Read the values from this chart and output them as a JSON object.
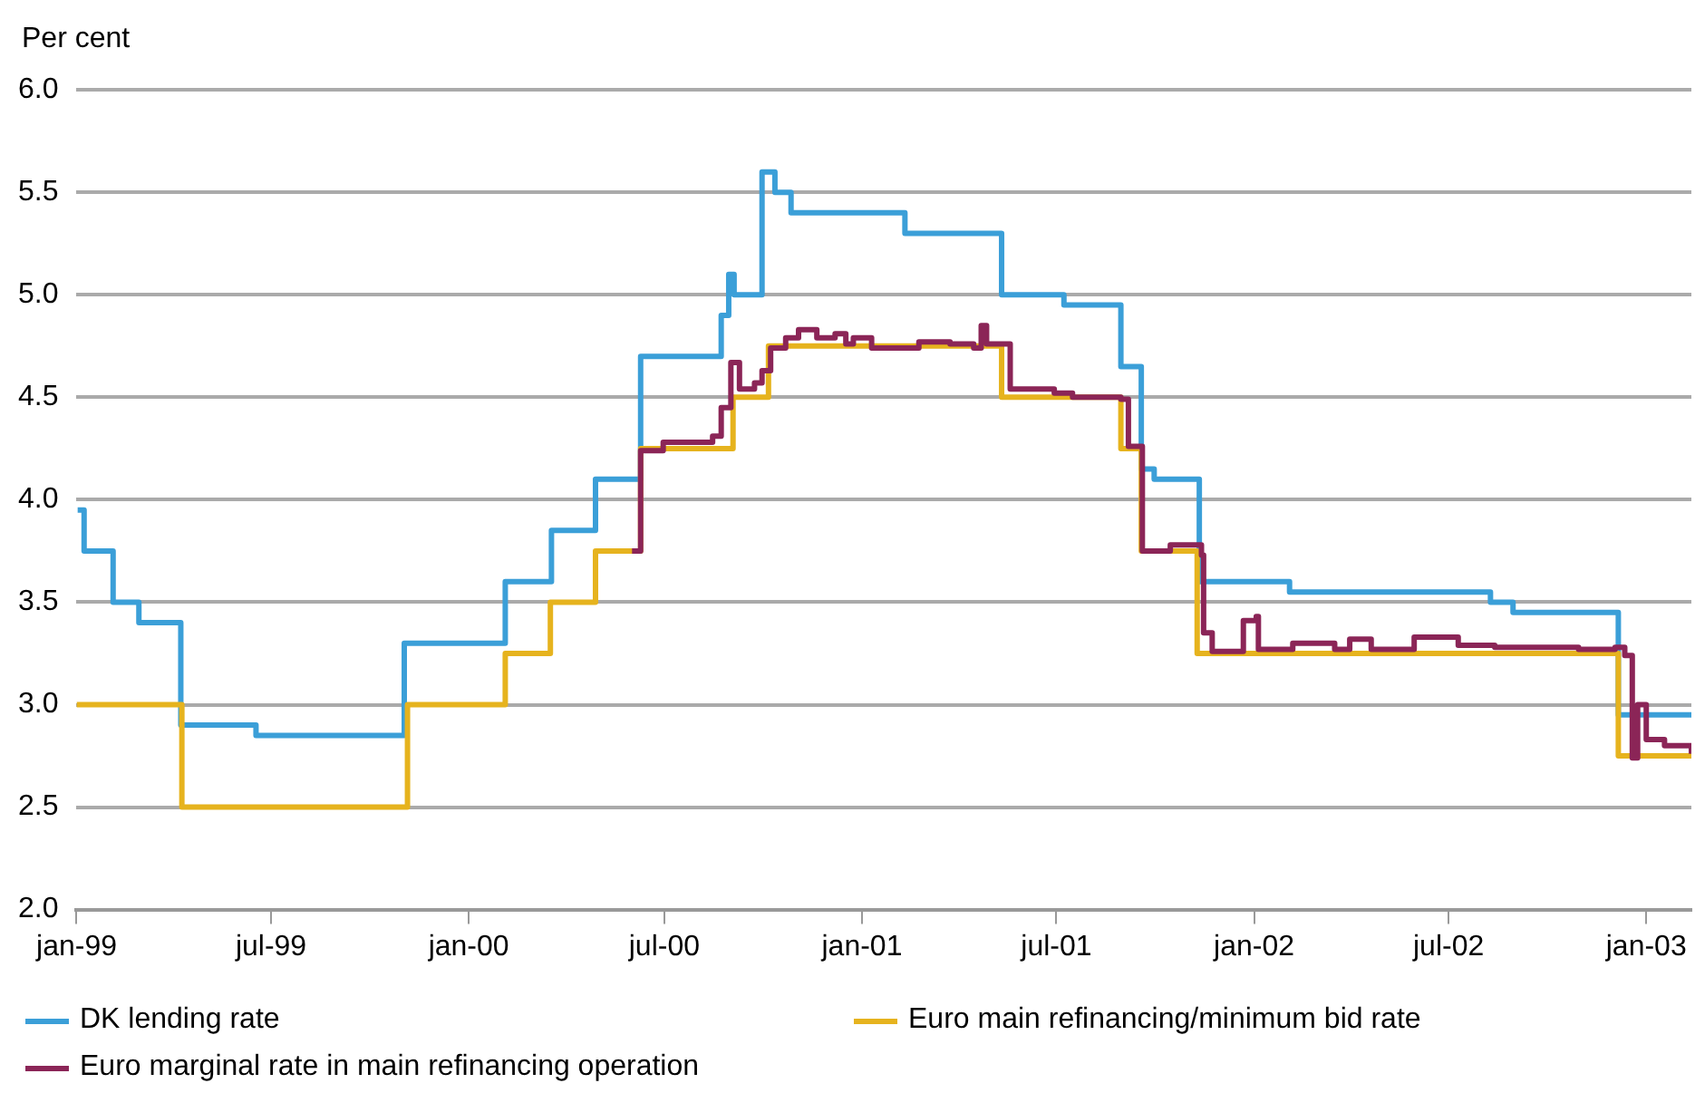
{
  "chart_data": {
    "type": "step",
    "ylabel": "Per cent",
    "legend": "bottom",
    "grid": "y",
    "marker": "none",
    "line_style": "solid",
    "xlim": [
      "1999-01-01",
      "2003-02-12"
    ],
    "xticks": [
      {
        "value": "1999-01-01",
        "label": "jan-99"
      },
      {
        "value": "1999-07-01",
        "label": "jul-99"
      },
      {
        "value": "2000-01-01",
        "label": "jan-00"
      },
      {
        "value": "2000-07-01",
        "label": "jul-00"
      },
      {
        "value": "2001-01-01",
        "label": "jan-01"
      },
      {
        "value": "2001-07-01",
        "label": "jul-01"
      },
      {
        "value": "2002-01-01",
        "label": "jan-02"
      },
      {
        "value": "2002-07-01",
        "label": "jul-02"
      },
      {
        "value": "2003-01-01",
        "label": "jan-03"
      }
    ],
    "ylim": [
      2.0,
      6.0
    ],
    "yticks": [
      {
        "value": 2,
        "label": "2.0"
      },
      {
        "value": 2.5,
        "label": "2.5"
      },
      {
        "value": 3,
        "label": "3.0"
      },
      {
        "value": 3.5,
        "label": "3.5"
      },
      {
        "value": 4,
        "label": "4.0"
      },
      {
        "value": 4.5,
        "label": "4.5"
      },
      {
        "value": 5,
        "label": "5.0"
      },
      {
        "value": 5.5,
        "label": "5.5"
      },
      {
        "value": 6,
        "label": "6.0"
      }
    ],
    "series": [
      {
        "name": "DK lending rate",
        "color": "#3b9fd8",
        "x": [
          "1999-01-02",
          "1999-01-08",
          "1999-02-04",
          "1999-02-28",
          "1999-04-08",
          "1999-06-17",
          "1999-11-02",
          "2000-02-04",
          "2000-03-18",
          "2000-04-28",
          "2000-06-09",
          "2000-08-23",
          "2000-08-30",
          "2000-09-04",
          "2000-09-30",
          "2000-10-12",
          "2000-10-27",
          "2001-02-10",
          "2001-05-11",
          "2001-07-08",
          "2001-08-30",
          "2001-09-18",
          "2001-09-30",
          "2001-11-11",
          "2002-02-03",
          "2002-08-09",
          "2002-08-30",
          "2002-12-06",
          "2003-02-12"
        ],
        "values": [
          3.95,
          3.75,
          3.5,
          3.4,
          2.9,
          2.85,
          3.3,
          3.6,
          3.85,
          4.1,
          4.7,
          4.9,
          5.1,
          5.0,
          5.6,
          5.5,
          5.4,
          5.3,
          5.0,
          4.95,
          4.65,
          4.15,
          4.1,
          3.6,
          3.55,
          3.5,
          3.45,
          2.95,
          2.95
        ]
      },
      {
        "name": "Euro main refinancing/minimum bid rate",
        "color": "#e6b31e",
        "x": [
          "1999-01-01",
          "1999-04-09",
          "1999-11-05",
          "2000-02-04",
          "2000-03-17",
          "2000-04-28",
          "2000-06-09",
          "2000-09-03",
          "2000-10-06",
          "2001-05-11",
          "2001-08-30",
          "2001-09-18",
          "2001-11-09",
          "2002-12-06",
          "2003-02-12"
        ],
        "values": [
          3.0,
          2.5,
          3.0,
          3.25,
          3.5,
          3.75,
          4.25,
          4.5,
          4.75,
          4.5,
          4.25,
          3.75,
          3.25,
          2.75,
          2.75
        ]
      },
      {
        "name": "Euro marginal rate in main refinancing operation",
        "color": "#8b2557",
        "x": [
          "2000-06-01",
          "2000-06-09",
          "2000-06-30",
          "2000-08-15",
          "2000-08-23",
          "2000-09-01",
          "2000-09-09",
          "2000-09-23",
          "2000-09-30",
          "2000-10-08",
          "2000-10-22",
          "2000-11-03",
          "2000-11-20",
          "2000-12-07",
          "2000-12-17",
          "2000-12-24",
          "2001-01-10",
          "2001-02-23",
          "2001-03-24",
          "2001-04-15",
          "2001-04-22",
          "2001-04-27",
          "2001-05-14",
          "2001-05-19",
          "2001-06-29",
          "2001-07-16",
          "2001-08-30",
          "2001-09-06",
          "2001-09-19",
          "2001-10-15",
          "2001-11-13",
          "2001-11-15",
          "2001-11-23",
          "2001-12-19",
          "2001-12-22",
          "2002-01-03",
          "2002-01-05",
          "2002-02-06",
          "2002-03-17",
          "2002-03-31",
          "2002-04-20",
          "2002-05-30",
          "2002-06-28",
          "2002-07-10",
          "2002-08-13",
          "2002-10-30",
          "2002-12-03",
          "2002-12-12",
          "2002-12-19",
          "2002-12-24",
          "2003-01-01",
          "2003-01-18",
          "2003-02-12"
        ],
        "values": [
          3.75,
          4.24,
          4.28,
          4.31,
          4.45,
          4.67,
          4.54,
          4.57,
          4.63,
          4.74,
          4.79,
          4.83,
          4.79,
          4.81,
          4.76,
          4.79,
          4.74,
          4.77,
          4.76,
          4.74,
          4.85,
          4.76,
          4.76,
          4.54,
          4.52,
          4.5,
          4.49,
          4.26,
          3.75,
          3.78,
          3.73,
          3.35,
          3.26,
          3.26,
          3.41,
          3.43,
          3.27,
          3.3,
          3.27,
          3.32,
          3.27,
          3.33,
          3.33,
          3.29,
          3.28,
          3.27,
          3.28,
          3.24,
          2.74,
          3.0,
          2.83,
          2.8,
          2.76
        ]
      }
    ]
  }
}
